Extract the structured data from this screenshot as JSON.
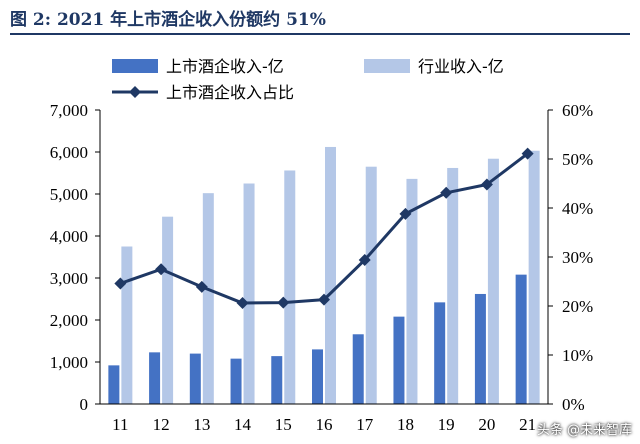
{
  "figure": {
    "title": "图 2:  2021 年上市酒企收入份额约 51%",
    "watermark": "头条 @未来智库"
  },
  "colors": {
    "title": "#1f3864",
    "listed_bar": "#4472c4",
    "industry_bar": "#b4c7e7",
    "line": "#1f3864"
  },
  "chart_data": {
    "type": "bar",
    "categories": [
      "11",
      "12",
      "13",
      "14",
      "15",
      "16",
      "17",
      "18",
      "19",
      "20",
      "21"
    ],
    "series": [
      {
        "name": "上市酒企收入-亿",
        "type": "bar",
        "axis": "left",
        "values": [
          920,
          1230,
          1200,
          1080,
          1140,
          1300,
          1660,
          2080,
          2420,
          2620,
          3080
        ]
      },
      {
        "name": "行业收入-亿",
        "type": "bar",
        "axis": "left",
        "values": [
          3750,
          4460,
          5020,
          5250,
          5560,
          6120,
          5650,
          5360,
          5620,
          5840,
          6030
        ]
      },
      {
        "name": "上市酒企收入占比",
        "type": "line",
        "axis": "right",
        "values": [
          24.6,
          27.5,
          23.9,
          20.6,
          20.7,
          21.3,
          29.4,
          38.8,
          43.1,
          44.8,
          51.1
        ]
      }
    ],
    "y_left": {
      "min": 0,
      "max": 7000,
      "ticks": [
        "0",
        "1,000",
        "2,000",
        "3,000",
        "4,000",
        "5,000",
        "6,000",
        "7,000"
      ]
    },
    "y_right": {
      "min": 0,
      "max": 60,
      "ticks": [
        "0%",
        "10%",
        "20%",
        "30%",
        "40%",
        "50%",
        "60%"
      ]
    },
    "legend_position": "top",
    "grid": false
  }
}
